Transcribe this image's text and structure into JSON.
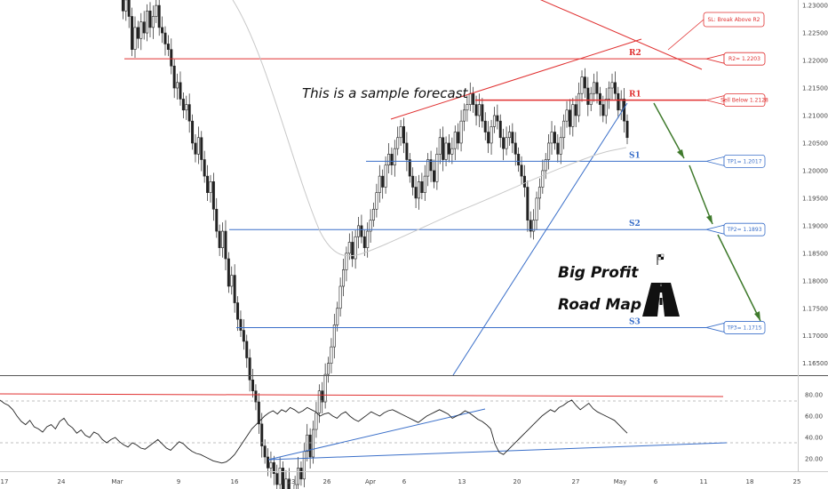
{
  "chart_data": {
    "type": "candlestick",
    "annotation": "This is a sample forecast",
    "title_line1": "Big Profit",
    "title_line2": "Road Map",
    "x_ticks": [
      "17",
      "24",
      "Mar",
      "9",
      "16",
      "23",
      "26",
      "Apr",
      "6",
      "13",
      "20",
      "27",
      "May",
      "6",
      "11",
      "18",
      "25"
    ],
    "y_ticks": [
      "1.23000",
      "1.22500",
      "1.22000",
      "1.21500",
      "1.21000",
      "1.20500",
      "1.20000",
      "1.19500",
      "1.19000",
      "1.18500",
      "1.18000",
      "1.17500",
      "1.17000",
      "1.16500"
    ],
    "ylim": [
      1.1635,
      1.2305
    ],
    "levels": [
      {
        "label": "R2",
        "value": 1.2203,
        "color": "#e03030",
        "callout": "R2= 1.2203"
      },
      {
        "label": "R1",
        "value": 1.2128,
        "color": "#e03030",
        "callout": "Sell Below 1.2128"
      },
      {
        "label": "S1",
        "value": 1.2017,
        "color": "#3a6fc9",
        "callout": "TP1= 1.2017"
      },
      {
        "label": "S2",
        "value": 1.1893,
        "color": "#3a6fc9",
        "callout": "TP2= 1.1893"
      },
      {
        "label": "S3",
        "value": 1.1715,
        "color": "#3a6fc9",
        "callout": "TP3= 1.1715"
      }
    ],
    "stop_loss_callout": "SL: Break Above R2",
    "price_path": [
      1.238,
      1.229,
      1.231,
      1.228,
      1.222,
      1.226,
      1.224,
      1.227,
      1.225,
      1.229,
      1.226,
      1.228,
      1.23,
      1.226,
      1.225,
      1.223,
      1.222,
      1.219,
      1.215,
      1.216,
      1.213,
      1.211,
      1.212,
      1.209,
      1.205,
      1.203,
      1.206,
      1.202,
      1.199,
      1.196,
      1.198,
      1.193,
      1.189,
      1.186,
      1.189,
      1.184,
      1.179,
      1.181,
      1.176,
      1.173,
      1.171,
      1.169,
      1.166,
      1.162,
      1.16,
      1.158,
      1.154,
      1.15,
      1.148,
      1.146,
      1.147,
      1.145,
      1.143,
      1.146,
      1.142,
      1.144,
      1.141,
      1.14,
      1.143,
      1.146,
      1.144,
      1.149,
      1.152,
      1.148,
      1.153,
      1.156,
      1.16,
      1.158,
      1.163,
      1.165,
      1.168,
      1.172,
      1.175,
      1.179,
      1.182,
      1.185,
      1.187,
      1.184,
      1.188,
      1.19,
      1.188,
      1.186,
      1.189,
      1.191,
      1.193,
      1.196,
      1.199,
      1.197,
      1.201,
      1.203,
      1.201,
      1.204,
      1.206,
      1.208,
      1.205,
      1.202,
      1.199,
      1.197,
      1.195,
      1.198,
      1.196,
      1.199,
      1.202,
      1.2,
      1.198,
      1.203,
      1.206,
      1.202,
      1.205,
      1.203,
      1.204,
      1.207,
      1.205,
      1.209,
      1.211,
      1.212,
      1.214,
      1.212,
      1.21,
      1.212,
      1.209,
      1.207,
      1.205,
      1.208,
      1.21,
      1.209,
      1.206,
      1.204,
      1.206,
      1.207,
      1.205,
      1.203,
      1.201,
      1.199,
      1.197,
      1.191,
      1.189,
      1.191,
      1.195,
      1.197,
      1.2,
      1.202,
      1.205,
      1.207,
      1.205,
      1.203,
      1.206,
      1.209,
      1.211,
      1.208,
      1.212,
      1.21,
      1.214,
      1.217,
      1.215,
      1.212,
      1.214,
      1.216,
      1.214,
      1.212,
      1.21,
      1.213,
      1.215,
      1.216,
      1.214,
      1.211,
      1.213,
      1.209,
      1.206
    ],
    "rsi_levels": [
      80,
      60,
      40,
      20
    ],
    "rsi_path": [
      75,
      72,
      70,
      66,
      60,
      55,
      52,
      56,
      50,
      48,
      45,
      50,
      52,
      48,
      55,
      58,
      52,
      49,
      44,
      47,
      42,
      40,
      45,
      43,
      38,
      35,
      38,
      40,
      36,
      33,
      31,
      35,
      33,
      30,
      29,
      32,
      35,
      38,
      34,
      30,
      28,
      32,
      36,
      34,
      30,
      27,
      25,
      24,
      22,
      20,
      18,
      17,
      16,
      17,
      20,
      24,
      30,
      36,
      42,
      48,
      52,
      56,
      60,
      63,
      65,
      62,
      66,
      64,
      68,
      66,
      63,
      65,
      68,
      66,
      64,
      60,
      62,
      63,
      60,
      58,
      62,
      64,
      60,
      57,
      55,
      58,
      61,
      64,
      62,
      60,
      63,
      65,
      66,
      64,
      62,
      60,
      58,
      56,
      54,
      57,
      60,
      62,
      64,
      66,
      64,
      62,
      58,
      60,
      62,
      65,
      63,
      60,
      57,
      55,
      52,
      48,
      34,
      26,
      24,
      28,
      32,
      36,
      40,
      44,
      48,
      52,
      56,
      60,
      63,
      66,
      64,
      68,
      70,
      73,
      75,
      70,
      66,
      69,
      72,
      67,
      64,
      62,
      60,
      58,
      56,
      52,
      48,
      44
    ]
  }
}
